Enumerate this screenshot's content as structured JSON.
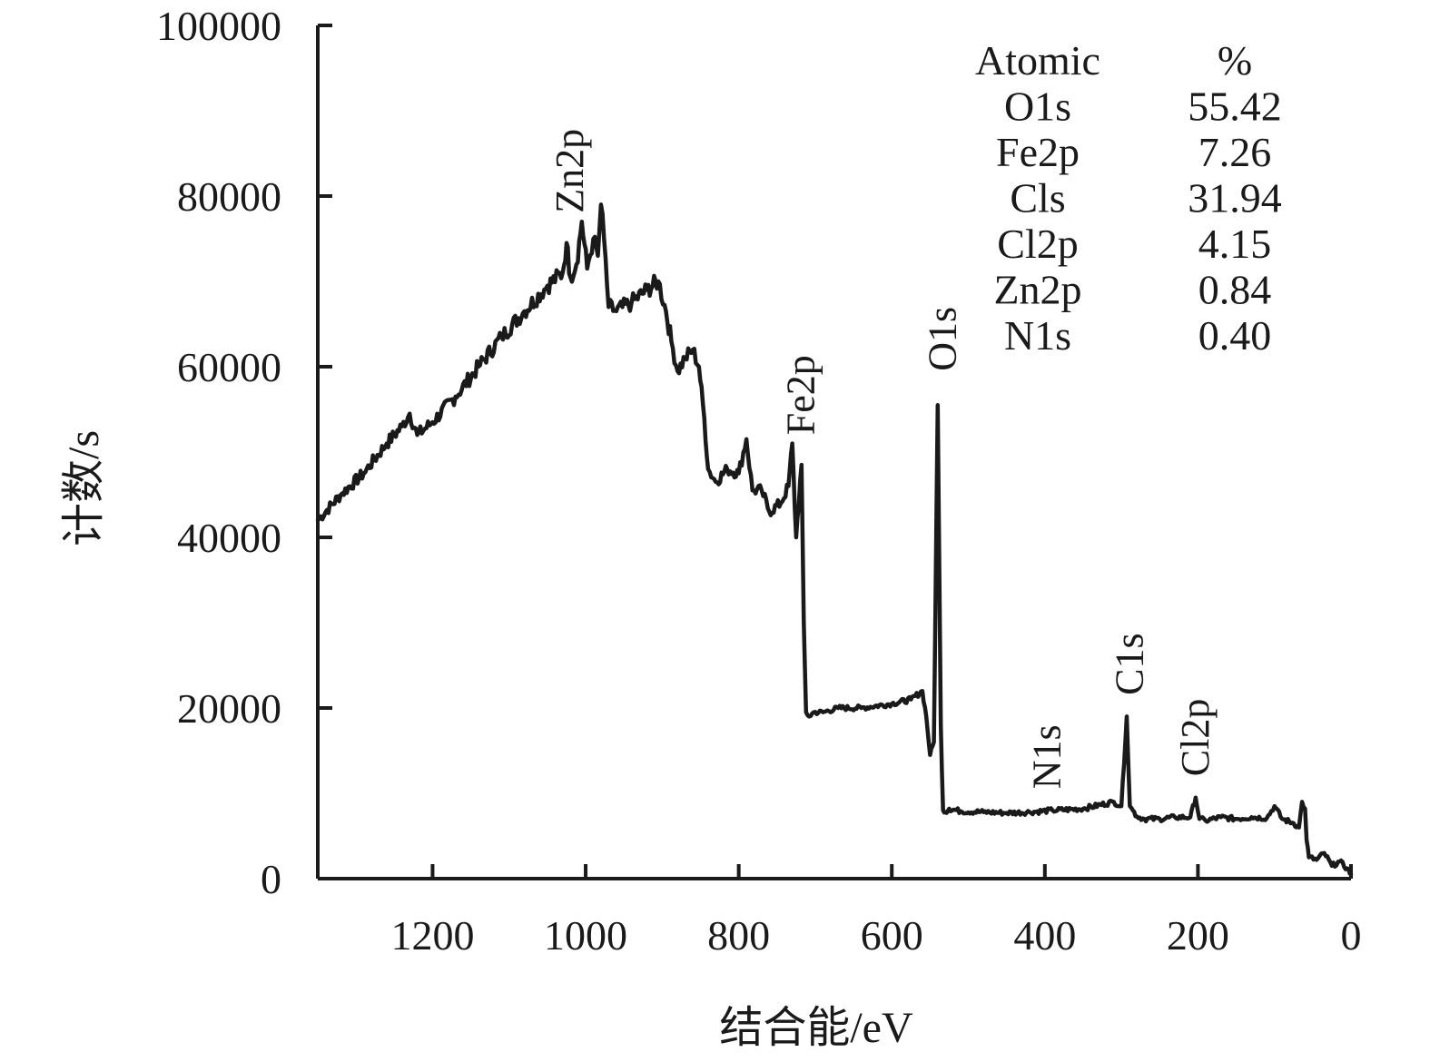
{
  "chart_data": {
    "type": "line",
    "title": "",
    "xlabel": "结合能/eV",
    "ylabel": "计数/s",
    "xlim": [
      1350,
      0
    ],
    "ylim": [
      0,
      100000
    ],
    "x_reversed": true,
    "x_ticks": [
      1200,
      1000,
      800,
      600,
      400,
      200,
      0
    ],
    "y_ticks": [
      0,
      20000,
      40000,
      60000,
      80000,
      100000
    ],
    "series": [
      {
        "x": [
          1350,
          1320,
          1290,
          1260,
          1240,
          1230,
          1220,
          1200,
          1170,
          1140,
          1110,
          1080,
          1050,
          1030,
          1025,
          1020,
          1012,
          1005,
          998,
          990,
          984,
          980,
          976,
          970,
          960,
          940,
          920,
          905,
          895,
          888,
          880,
          870,
          860,
          852,
          845,
          840,
          830,
          815,
          800,
          790,
          782,
          770,
          760,
          745,
          735,
          730,
          725,
          718,
          715,
          712,
          708,
          702,
          690,
          670,
          640,
          600,
          575,
          560,
          555,
          550,
          545,
          540,
          536,
          533,
          530,
          525,
          510,
          480,
          450,
          420,
          390,
          350,
          310,
          300,
          293,
          289,
          285,
          280,
          270,
          250,
          230,
          210,
          203,
          198,
          190,
          170,
          150,
          130,
          110,
          100,
          90,
          75,
          68,
          64,
          60,
          58,
          55,
          45,
          35,
          25,
          15,
          5,
          0
        ],
        "y": [
          42000,
          45000,
          47500,
          51000,
          53000,
          54500,
          52000,
          53500,
          56500,
          60000,
          63500,
          66500,
          69500,
          71000,
          74500,
          70500,
          72000,
          77000,
          71500,
          75000,
          73000,
          79000,
          75000,
          67000,
          66500,
          67500,
          69000,
          70000,
          66500,
          63000,
          59500,
          61000,
          62000,
          60000,
          54000,
          48000,
          46500,
          48000,
          47500,
          51500,
          45500,
          45500,
          43000,
          44000,
          46000,
          51000,
          40000,
          48500,
          30000,
          19500,
          19000,
          19500,
          19500,
          20000,
          20000,
          20500,
          21000,
          22000,
          19000,
          14500,
          16000,
          55500,
          18000,
          8000,
          7800,
          8200,
          7900,
          7800,
          7700,
          7800,
          8000,
          8200,
          9000,
          8500,
          19000,
          8500,
          8000,
          7300,
          7000,
          7000,
          7200,
          7200,
          9500,
          7000,
          6800,
          7200,
          7000,
          7200,
          7100,
          8500,
          7000,
          6500,
          6000,
          9000,
          8200,
          4500,
          2500,
          2200,
          3000,
          1500,
          2000,
          1200,
          500
        ]
      }
    ],
    "peak_labels": [
      {
        "text": "Zn2p",
        "x": 1020,
        "y": 78000
      },
      {
        "text": "Fe2p",
        "x": 718,
        "y": 52000
      },
      {
        "text": "O1s",
        "x": 533,
        "y": 59500
      },
      {
        "text": "N1s",
        "x": 397,
        "y": 10500
      },
      {
        "text": "C1s",
        "x": 289,
        "y": 21500
      },
      {
        "text": "Cl2p",
        "x": 203,
        "y": 12000
      }
    ],
    "table": {
      "headers": [
        "Atomic",
        "%"
      ],
      "rows": [
        [
          "O1s",
          "55.42"
        ],
        [
          "Fe2p",
          "7.26"
        ],
        [
          "Cls",
          "31.94"
        ],
        [
          "Cl2p",
          "4.15"
        ],
        [
          "Zn2p",
          "0.84"
        ],
        [
          "N1s",
          "0.40"
        ]
      ]
    }
  }
}
